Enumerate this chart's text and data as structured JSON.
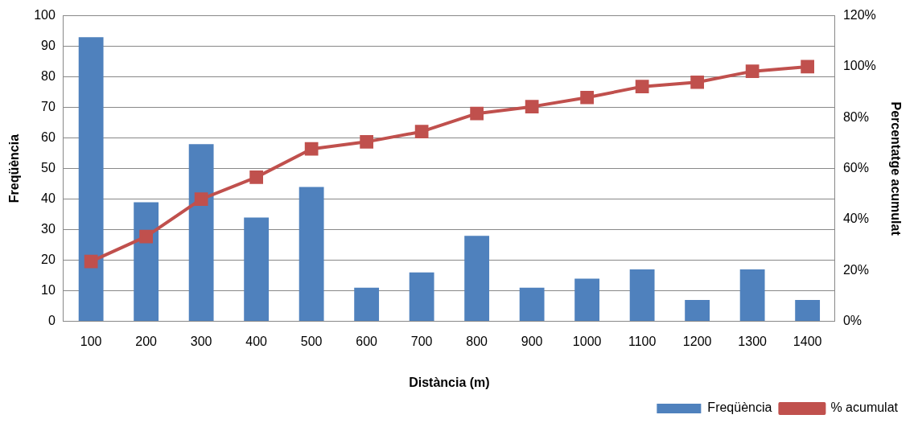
{
  "chart_data": {
    "type": "bar",
    "xlabel": "Distància (m)",
    "ylabel": "Freqüència",
    "y2label": "Percentatge acumulat",
    "categories": [
      "100",
      "200",
      "300",
      "400",
      "500",
      "600",
      "700",
      "800",
      "900",
      "1000",
      "1100",
      "1200",
      "1300",
      "1400"
    ],
    "series": [
      {
        "name": "Freqüència",
        "color": "#4f81bd",
        "values": [
          93,
          39,
          58,
          34,
          44,
          11,
          16,
          28,
          11,
          14,
          17,
          7,
          17,
          7
        ]
      },
      {
        "name": "% acumulat",
        "type": "line",
        "axis": "y2",
        "color": "#c0504d",
        "marker": "square",
        "values": [
          23.5,
          33.3,
          48.0,
          56.6,
          67.7,
          70.5,
          74.5,
          81.6,
          84.3,
          87.9,
          92.2,
          93.9,
          98.2,
          100
        ]
      }
    ],
    "ylim": [
      0,
      100
    ],
    "yticks": [
      0,
      10,
      20,
      30,
      40,
      50,
      60,
      70,
      80,
      90,
      100
    ],
    "y2lim": [
      0,
      120
    ],
    "y2ticks": [
      {
        "value": 0,
        "label": "0%"
      },
      {
        "value": 20,
        "label": "20%"
      },
      {
        "value": 40,
        "label": "40%"
      },
      {
        "value": 60,
        "label": "60%"
      },
      {
        "value": 80,
        "label": "80%"
      },
      {
        "value": 100,
        "label": "100%"
      },
      {
        "value": 120,
        "label": "120%"
      }
    ],
    "grid": "y",
    "legend": "bottom right"
  }
}
